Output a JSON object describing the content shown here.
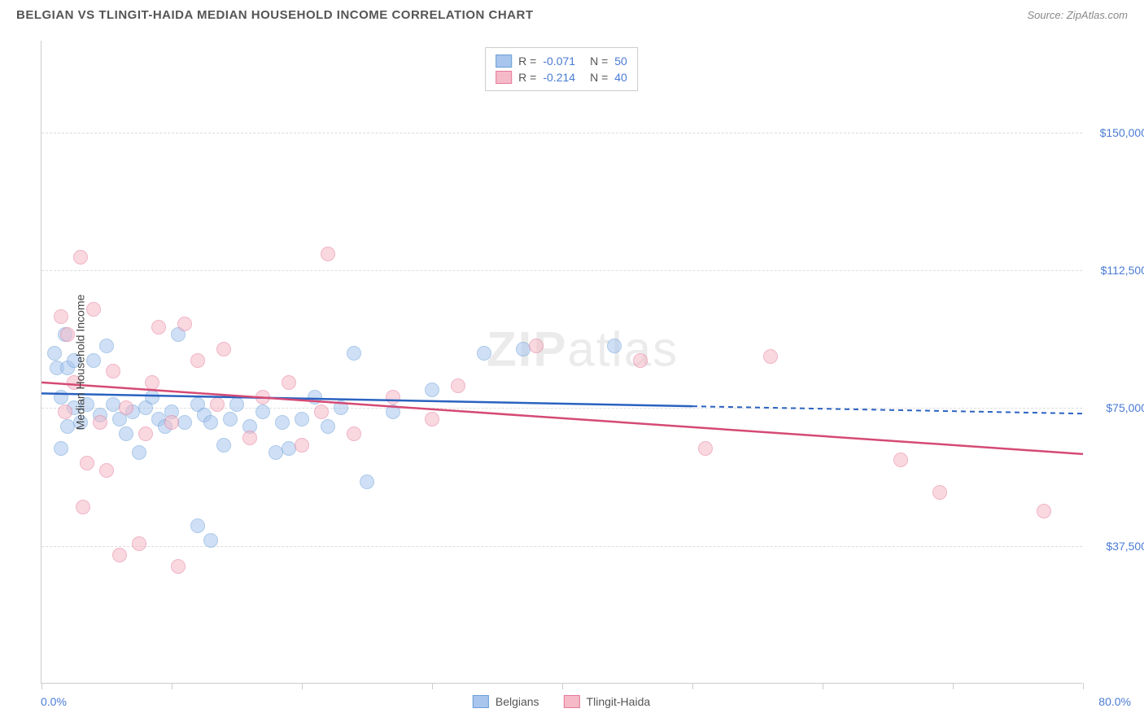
{
  "header": {
    "title": "BELGIAN VS TLINGIT-HAIDA MEDIAN HOUSEHOLD INCOME CORRELATION CHART",
    "source": "Source: ZipAtlas.com"
  },
  "chart": {
    "type": "scatter",
    "yaxis_title": "Median Household Income",
    "xlim": [
      0,
      80
    ],
    "ylim": [
      0,
      175000
    ],
    "xaxis_labels": {
      "left": "0.0%",
      "right": "80.0%"
    },
    "yticks": [
      {
        "value": 37500,
        "label": "$37,500"
      },
      {
        "value": 75000,
        "label": "$75,000"
      },
      {
        "value": 112500,
        "label": "$112,500"
      },
      {
        "value": 150000,
        "label": "$150,000"
      }
    ],
    "xtick_positions": [
      0,
      10,
      20,
      30,
      40,
      50,
      60,
      70,
      80
    ],
    "background_color": "#ffffff",
    "grid_color": "#dddddd",
    "axis_color": "#cccccc",
    "tick_label_color": "#4a7bd4",
    "marker_radius": 9,
    "marker_opacity": 0.55,
    "series": [
      {
        "name": "Belgians",
        "color_fill": "#a8c5ed",
        "color_stroke": "#6a9fd8",
        "trend": {
          "x1": 0,
          "y1": 79000,
          "x2": 50,
          "y2": 75500,
          "extend_x": 80,
          "extend_y": 73500,
          "color": "#2a62c0",
          "width": 2.5
        },
        "stats": {
          "R": "-0.071",
          "N": "50"
        },
        "points": [
          [
            1.0,
            90000
          ],
          [
            1.2,
            86000
          ],
          [
            1.5,
            78000
          ],
          [
            1.5,
            64000
          ],
          [
            1.8,
            95000
          ],
          [
            2.0,
            86000
          ],
          [
            2.0,
            70000
          ],
          [
            2.5,
            88000
          ],
          [
            2.5,
            75000
          ],
          [
            3.0,
            71000
          ],
          [
            3.5,
            76000
          ],
          [
            4.0,
            88000
          ],
          [
            4.5,
            73000
          ],
          [
            5.0,
            92000
          ],
          [
            5.5,
            76000
          ],
          [
            6.0,
            72000
          ],
          [
            6.5,
            68000
          ],
          [
            7.0,
            74000
          ],
          [
            7.5,
            63000
          ],
          [
            8.0,
            75000
          ],
          [
            8.5,
            78000
          ],
          [
            9.0,
            72000
          ],
          [
            9.5,
            70000
          ],
          [
            10.0,
            74000
          ],
          [
            10.5,
            95000
          ],
          [
            11.0,
            71000
          ],
          [
            12.0,
            76000
          ],
          [
            12.0,
            43000
          ],
          [
            12.5,
            73000
          ],
          [
            13.0,
            71000
          ],
          [
            13.0,
            39000
          ],
          [
            14.0,
            65000
          ],
          [
            14.5,
            72000
          ],
          [
            15.0,
            76000
          ],
          [
            16.0,
            70000
          ],
          [
            17.0,
            74000
          ],
          [
            18.0,
            63000
          ],
          [
            18.5,
            71000
          ],
          [
            19.0,
            64000
          ],
          [
            20.0,
            72000
          ],
          [
            21.0,
            78000
          ],
          [
            22.0,
            70000
          ],
          [
            23.0,
            75000
          ],
          [
            24.0,
            90000
          ],
          [
            25.0,
            55000
          ],
          [
            27.0,
            74000
          ],
          [
            30.0,
            80000
          ],
          [
            34.0,
            90000
          ],
          [
            37.0,
            91000
          ],
          [
            44.0,
            92000
          ]
        ]
      },
      {
        "name": "Tlingit-Haida",
        "color_fill": "#f5b9c8",
        "color_stroke": "#e57a9a",
        "trend": {
          "x1": 0,
          "y1": 82000,
          "x2": 80,
          "y2": 62500,
          "color": "#d54a75",
          "width": 2.5
        },
        "stats": {
          "R": "-0.214",
          "N": "40"
        },
        "points": [
          [
            1.5,
            100000
          ],
          [
            1.8,
            74000
          ],
          [
            2.0,
            95000
          ],
          [
            2.5,
            82000
          ],
          [
            3.0,
            116000
          ],
          [
            3.2,
            48000
          ],
          [
            3.5,
            60000
          ],
          [
            4.0,
            102000
          ],
          [
            4.5,
            71000
          ],
          [
            5.0,
            58000
          ],
          [
            5.5,
            85000
          ],
          [
            6.0,
            35000
          ],
          [
            6.5,
            75000
          ],
          [
            7.5,
            38000
          ],
          [
            8.0,
            68000
          ],
          [
            8.5,
            82000
          ],
          [
            9.0,
            97000
          ],
          [
            10.0,
            71000
          ],
          [
            10.5,
            32000
          ],
          [
            11.0,
            98000
          ],
          [
            12.0,
            88000
          ],
          [
            13.5,
            76000
          ],
          [
            14.0,
            91000
          ],
          [
            16.0,
            67000
          ],
          [
            17.0,
            78000
          ],
          [
            19.0,
            82000
          ],
          [
            20.0,
            65000
          ],
          [
            21.5,
            74000
          ],
          [
            22.0,
            117000
          ],
          [
            24.0,
            68000
          ],
          [
            27.0,
            78000
          ],
          [
            30.0,
            72000
          ],
          [
            32.0,
            81000
          ],
          [
            38.0,
            92000
          ],
          [
            46.0,
            88000
          ],
          [
            51.0,
            64000
          ],
          [
            56.0,
            89000
          ],
          [
            66.0,
            61000
          ],
          [
            69.0,
            52000
          ],
          [
            77.0,
            47000
          ]
        ]
      }
    ],
    "watermark": {
      "text_a": "ZIP",
      "text_b": "atlas"
    }
  },
  "legend": {
    "series1_label": "Belgians",
    "series2_label": "Tlingit-Haida"
  }
}
